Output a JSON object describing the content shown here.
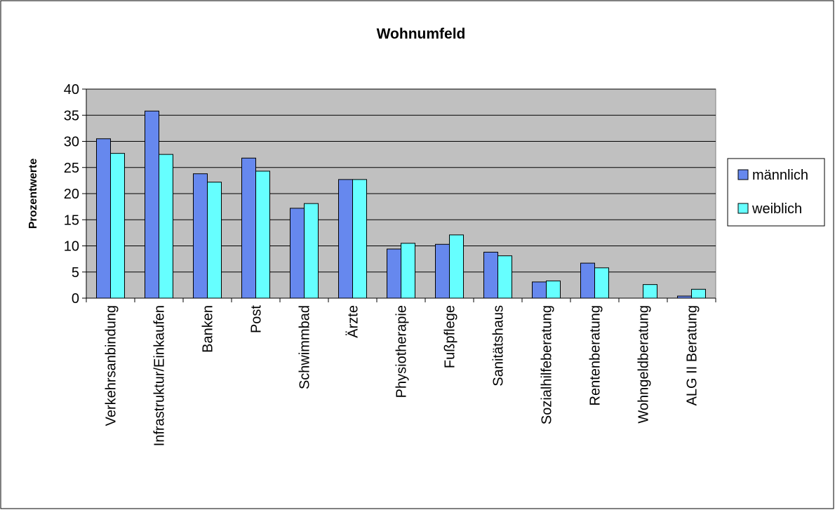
{
  "chart_data": {
    "type": "bar",
    "title": "Wohnumfeld",
    "y_label": "Prozentwerte",
    "categories": [
      "Verkehrsanbindung",
      "Infrastruktur/Einkaufen",
      "Banken",
      "Post",
      "Schwimmbad",
      "Ärzte",
      "Physiotherapie",
      "Fußpflege",
      "Sanitätshaus",
      "Sozialhilfeberatung",
      "Rentenberatung",
      "Wohngeldberatung",
      "ALG II Beratung"
    ],
    "series": [
      {
        "name": "männlich",
        "color": "#6688ee",
        "values": [
          30.5,
          35.8,
          23.8,
          26.8,
          17.2,
          22.7,
          9.4,
          10.3,
          8.8,
          3.1,
          6.7,
          0,
          0.4
        ]
      },
      {
        "name": "weiblich",
        "color": "#66ffff",
        "values": [
          27.7,
          27.5,
          22.2,
          24.3,
          18.1,
          22.7,
          10.5,
          12.1,
          8.1,
          3.3,
          5.8,
          2.6,
          1.7
        ]
      }
    ],
    "ylim": [
      0,
      40
    ],
    "yticks": [
      0,
      5,
      10,
      15,
      20,
      25,
      30,
      35,
      40
    ],
    "grid": true,
    "legend": "right"
  }
}
